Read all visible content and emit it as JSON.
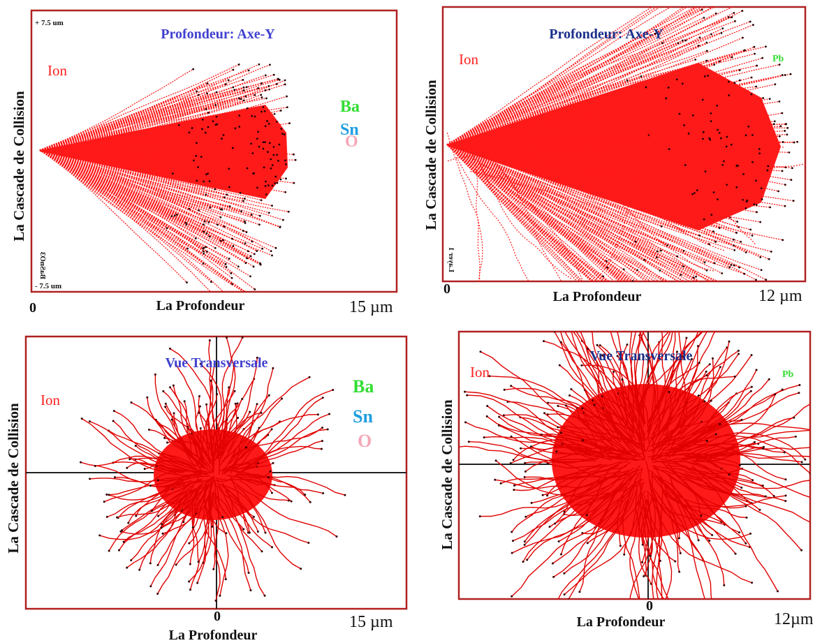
{
  "panels": [
    {
      "top_label": "+ 7.5 um",
      "title": "Profondeur: Axe-Y",
      "ion": "Ion",
      "legend": [
        "Ba",
        "Sn",
        "O"
      ],
      "y_label": "La Cascade de Collision",
      "layer_label": "BaSnO3",
      "bottom_label": "- 7.5 um",
      "x_origin": "0",
      "x_label": "La Profondeur",
      "x_end": "15 µm"
    },
    {
      "title": "Profondeur: Axe-Y",
      "ion": "Ion",
      "legend": [
        "Pb"
      ],
      "y_label": "La Cascade de Collision",
      "layer_label": "Layer 1",
      "x_origin": "0",
      "x_label": "La Profondeur",
      "x_end": "12 µm"
    },
    {
      "title": "Vue Transversale",
      "ion": "Ion",
      "legend": [
        "Ba",
        "Sn",
        "O"
      ],
      "y_label": "La Cascade de Collision",
      "x_origin": "0",
      "x_end": "15 µm",
      "x_label": "La Profondeur"
    },
    {
      "title": "Vue Transversale",
      "ion": "Ion",
      "legend": [
        "Pb"
      ],
      "y_label": "La Cascade de Collision",
      "x_origin": "0",
      "x_label": "La Profondeur",
      "x_end": "12µm"
    }
  ]
}
